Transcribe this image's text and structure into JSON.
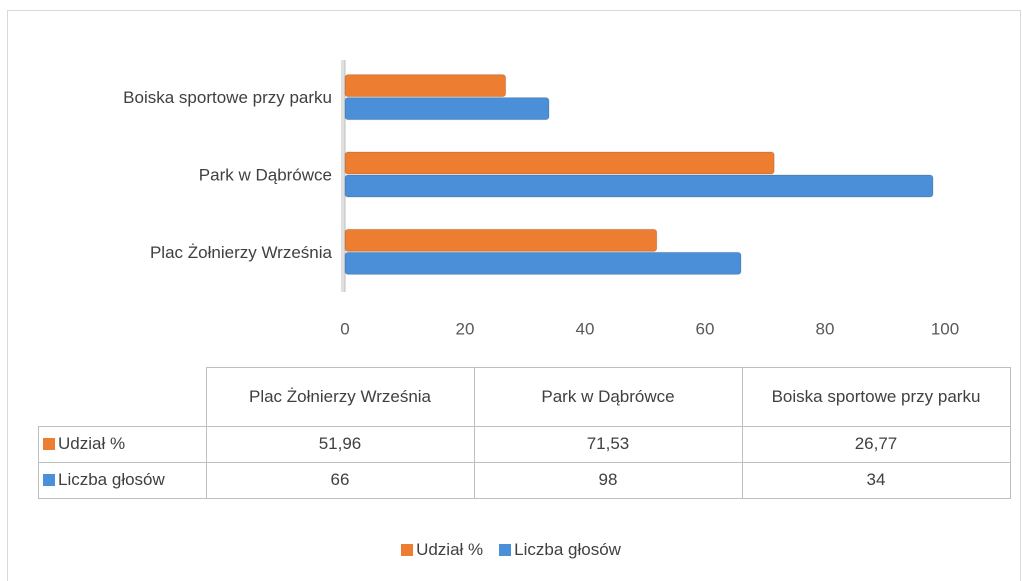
{
  "chart_data": {
    "type": "bar",
    "orientation": "horizontal",
    "categories": [
      "Plac Żołnierzy Września",
      "Park w Dąbrówce",
      "Boiska sportowe przy parku"
    ],
    "series": [
      {
        "name": "Udział %",
        "color": "#ed7d31",
        "values": [
          51.96,
          71.53,
          26.77
        ],
        "value_labels": [
          "51,96",
          "71,53",
          "26,77"
        ]
      },
      {
        "name": "Liczba głosów",
        "color": "#4a8fd8",
        "values": [
          66,
          98,
          34
        ]
      }
    ],
    "xlim": [
      0,
      100
    ],
    "xticks": [
      0,
      20,
      40,
      60,
      80,
      100
    ],
    "grid": false,
    "legend": "bottom"
  }
}
